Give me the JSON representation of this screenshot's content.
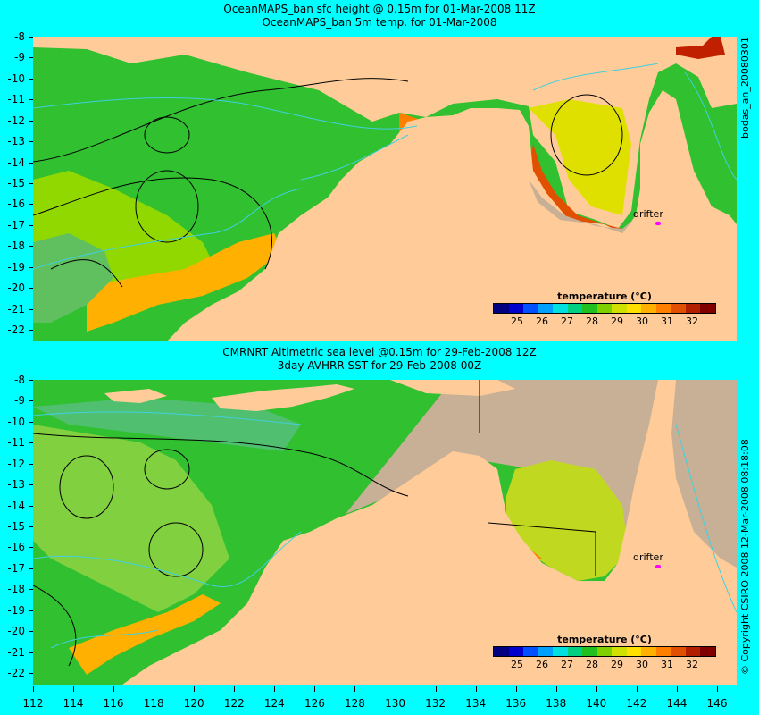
{
  "top": {
    "title_line1": "OceanMAPS_ban sfc height @ 0.15m for 01-Mar-2008 11Z",
    "title_line2": "OceanMAPS_ban 5m temp. for 01-Mar-2008",
    "side_label": "bodas_an_20080301",
    "drifter_label": "drifter",
    "legend_title": "temperature (°C)"
  },
  "bottom": {
    "title_line1": "CMRNRT Altimetric sea level  @0.15m  for 29-Feb-2008 12Z",
    "title_line2": "3day AVHRR SST for 29-Feb-2008 00Z",
    "side_label": "© Copyright CSIRO 2008   12-Mar-2008 08:18:08",
    "drifter_label": "drifter",
    "legend_title": "temperature (°C)"
  },
  "y_ticks": [
    "-8",
    "-9",
    "-10",
    "-11",
    "-12",
    "-13",
    "-14",
    "-15",
    "-16",
    "-17",
    "-18",
    "-19",
    "-20",
    "-21",
    "-22"
  ],
  "x_ticks": [
    "112",
    "114",
    "116",
    "118",
    "120",
    "122",
    "124",
    "126",
    "128",
    "130",
    "132",
    "134",
    "136",
    "138",
    "140",
    "142",
    "144",
    "146"
  ],
  "legend_ticks": [
    "25",
    "26",
    "27",
    "28",
    "29",
    "30",
    "31",
    "32"
  ],
  "colorscale": [
    "#000080",
    "#0000cc",
    "#0050ff",
    "#00a0ff",
    "#00e0e0",
    "#00d080",
    "#20c020",
    "#80d000",
    "#d0e000",
    "#ffe000",
    "#ffb000",
    "#ff8000",
    "#e05000",
    "#b02000",
    "#800000"
  ],
  "colors": {
    "background": "#00ffff",
    "land": "#ffcc99",
    "no_data": "#c8b096",
    "drifter": "#ff00ff"
  }
}
